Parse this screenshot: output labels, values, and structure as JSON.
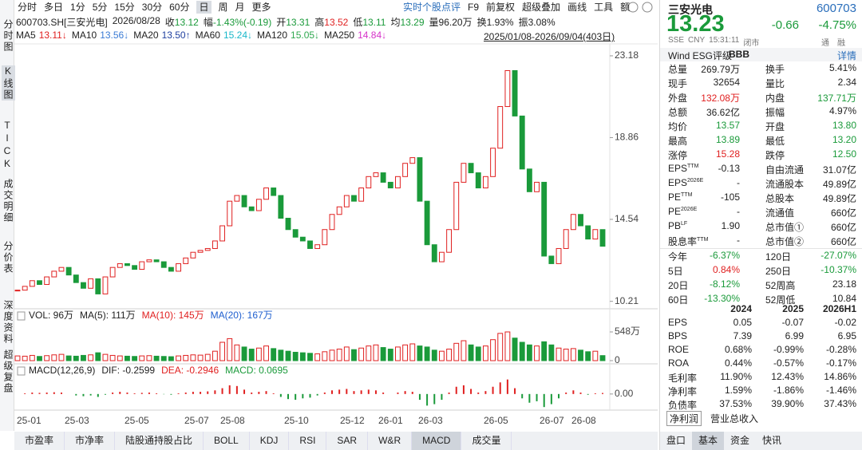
{
  "toolbar": {
    "periods": [
      "分时",
      "多日",
      "1分",
      "5分",
      "15分",
      "30分",
      "60分",
      "日",
      "周",
      "月",
      "更多"
    ],
    "tools": [
      "实时个股点评",
      "F9",
      "前复权",
      "超级叠加",
      "画线",
      "工具",
      "额"
    ]
  },
  "side_tabs": [
    "分时图",
    "K线图",
    "TICK",
    "成交明细",
    "分价表",
    "深度资料",
    "超级复盘"
  ],
  "quote_line": {
    "security": "600703.SH[三安光电]",
    "date": "2026/08/28",
    "items": [
      {
        "label": "收",
        "value": "13.12",
        "color": "#1a9a3a"
      },
      {
        "label": "幅",
        "value": "-1.43%(-0.19)",
        "color": "#1a9a3a"
      },
      {
        "label": "开",
        "value": "13.31",
        "color": "#1a9a3a"
      },
      {
        "label": "高",
        "value": "13.52",
        "color": "#e02020"
      },
      {
        "label": "低",
        "value": "13.11",
        "color": "#1a9a3a"
      },
      {
        "label": "均",
        "value": "13.29",
        "color": "#1a9a3a"
      },
      {
        "label": "量",
        "value": "96.20万",
        "color": "#222222"
      },
      {
        "label": "换",
        "value": "1.93%",
        "color": "#222222"
      },
      {
        "label": "振",
        "value": "3.08%",
        "color": "#222222"
      }
    ]
  },
  "ma_line": {
    "items": [
      {
        "label": "MA5",
        "value": "13.11↓",
        "color": "#e02020"
      },
      {
        "label": "MA10",
        "value": "13.56↓",
        "color": "#3a7bd5"
      },
      {
        "label": "MA20",
        "value": "13.50↑",
        "color": "#1f3f9f"
      },
      {
        "label": "MA60",
        "value": "15.24↓",
        "color": "#18b7c9"
      },
      {
        "label": "MA120",
        "value": "15.05↓",
        "color": "#2fa84f"
      },
      {
        "label": "MA250",
        "value": "14.84↓",
        "color": "#d633c9"
      }
    ],
    "range": "2025/01/08-2026/09/04(403日)"
  },
  "chart_data": [
    {
      "type": "candlestick",
      "up_color": "#e02020",
      "down_color": "#1a9a3a",
      "close": [
        10.8,
        11.0,
        11.3,
        11.1,
        11.5,
        11.8,
        12.0,
        11.6,
        11.2,
        10.9,
        11.4,
        10.6,
        11.5,
        12.0,
        12.2,
        12.1,
        11.9,
        12.3,
        12.4,
        12.3,
        12.0,
        11.8,
        12.2,
        12.5,
        12.8,
        12.9,
        13.0,
        13.4,
        14.2,
        15.5,
        15.8,
        15.2,
        15.0,
        15.6,
        16.2,
        15.8,
        14.6,
        14.0,
        13.6,
        13.4,
        13.0,
        13.2,
        14.0,
        14.8,
        15.2,
        15.8,
        15.5,
        16.2,
        16.8,
        17.0,
        16.5,
        16.2,
        16.8,
        17.5,
        17.8,
        15.5,
        13.2,
        12.3,
        12.8,
        14.0,
        16.5,
        17.5,
        17.0,
        16.2,
        16.8,
        18.3,
        20.5,
        22.4,
        20.0,
        17.2,
        16.0,
        16.5,
        12.6,
        12.2,
        13.0,
        14.0,
        14.8,
        14.2,
        13.5,
        14.0,
        13.12
      ],
      "ylim": [
        9.9,
        23.6
      ],
      "yticks": [
        10.21,
        14.54,
        18.86,
        23.18
      ],
      "x_labels": [
        "25-01",
        "25-03",
        "25-05",
        "25-07",
        "25-08",
        "25-10",
        "25-12",
        "26-01",
        "26-03",
        "26-05",
        "26-07",
        "26-08"
      ]
    },
    {
      "type": "bar",
      "header": [
        {
          "text": "VOL: 96万",
          "color": "#222222"
        },
        {
          "text": "MA(5): 111万",
          "color": "#222222"
        },
        {
          "text": "MA(10): 145万",
          "color": "#e02020"
        },
        {
          "text": "MA(20): 167万",
          "color": "#1f5fcf"
        }
      ],
      "values": [
        90,
        85,
        100,
        80,
        95,
        110,
        120,
        90,
        85,
        100,
        110,
        150,
        120,
        100,
        90,
        85,
        80,
        90,
        95,
        85,
        80,
        75,
        90,
        100,
        110,
        105,
        120,
        180,
        350,
        420,
        300,
        260,
        220,
        240,
        280,
        230,
        200,
        180,
        160,
        150,
        140,
        130,
        170,
        200,
        220,
        260,
        210,
        240,
        280,
        300,
        250,
        220,
        260,
        300,
        320,
        280,
        260,
        200,
        180,
        220,
        330,
        380,
        300,
        260,
        280,
        400,
        520,
        548,
        430,
        350,
        300,
        280,
        360,
        300,
        240,
        220,
        230,
        200,
        170,
        180,
        96
      ],
      "ylim": [
        0,
        548
      ],
      "yticks": [
        {
          "value": 548,
          "label": "548万"
        },
        0
      ]
    },
    {
      "type": "macd",
      "header": [
        {
          "text": "MACD(12,26,9)",
          "color": "#222222"
        },
        {
          "text": "DIF: -0.2599",
          "color": "#222222"
        },
        {
          "text": "DEA: -0.2946",
          "color": "#e02020"
        },
        {
          "text": "MACD: 0.0695",
          "color": "#1a9a3a"
        }
      ],
      "values": [
        0,
        0.05,
        0.1,
        0.08,
        0.1,
        0.12,
        0.1,
        0,
        -0.1,
        -0.15,
        -0.1,
        -0.2,
        -0.05,
        0.1,
        0.15,
        0.1,
        0.05,
        0.08,
        0.1,
        0.05,
        -0.02,
        -0.05,
        0.05,
        0.1,
        0.15,
        0.15,
        0.18,
        0.25,
        0.4,
        0.6,
        0.55,
        0.3,
        0.1,
        0.15,
        0.2,
        0.05,
        -0.2,
        -0.35,
        -0.4,
        -0.3,
        -0.25,
        -0.1,
        0.1,
        0.25,
        0.3,
        0.35,
        0.2,
        0.25,
        0.3,
        0.25,
        0.1,
        0,
        0.1,
        0.2,
        0.15,
        -0.4,
        -0.8,
        -0.7,
        -0.4,
        0.1,
        0.5,
        0.6,
        0.35,
        0.1,
        0.2,
        0.5,
        0.8,
        1.0,
        0.4,
        -0.3,
        -0.6,
        -0.5,
        -0.9,
        -0.7,
        -0.3,
        0.1,
        0.25,
        0.1,
        -0.05,
        0.05,
        0.07
      ],
      "ylim": [
        -1,
        1.2
      ],
      "yticks": [
        {
          "value": 0,
          "label": "0.00"
        }
      ]
    }
  ],
  "indicator_tabs": [
    "市盈率",
    "市净率",
    "陆股通持股占比",
    "BOLL",
    "KDJ",
    "RSI",
    "SAR",
    "W&R",
    "MACD",
    "成交量"
  ],
  "side_panel": {
    "header": {
      "name": "三安光电",
      "code": "600703",
      "price": "13.23",
      "change": "-0.66",
      "change_pct": "-4.75%",
      "meta": [
        "SSE",
        "CNY",
        "15:31:11",
        "闭市"
      ],
      "badges": [
        "通",
        "融"
      ],
      "esg_label": "Wind ESG评级",
      "esg_rating": "BBB",
      "detail": "详情"
    },
    "stats": [
      {
        "left": {
          "label": "总量",
          "value": "269.79万"
        },
        "right": {
          "label": "换手",
          "value": "5.41%"
        }
      },
      {
        "left": {
          "label": "现手",
          "value": "32654"
        },
        "right": {
          "label": "量比",
          "value": "2.34"
        }
      },
      {
        "left": {
          "label": "外盘",
          "value": "132.08万",
          "color": "#e02020"
        },
        "right": {
          "label": "内盘",
          "value": "137.71万",
          "color": "#1a9a3a"
        }
      },
      {
        "left": {
          "label": "总额",
          "value": "36.62亿"
        },
        "right": {
          "label": "振幅",
          "value": "4.97%"
        }
      },
      {
        "left": {
          "label": "均价",
          "value": "13.57",
          "color": "#1a9a3a"
        },
        "right": {
          "label": "开盘",
          "value": "13.80",
          "color": "#1a9a3a"
        }
      },
      {
        "left": {
          "label": "最高",
          "value": "13.89",
          "color": "#1a9a3a"
        },
        "right": {
          "label": "最低",
          "value": "13.20",
          "color": "#1a9a3a"
        }
      },
      {
        "left": {
          "label": "涨停",
          "value": "15.28",
          "color": "#e02020"
        },
        "right": {
          "label": "跌停",
          "value": "12.50",
          "color": "#1a9a3a"
        }
      },
      {
        "left": {
          "label": "EPS",
          "sup": "TTM",
          "value": "-0.13"
        },
        "right": {
          "label": "自由流通",
          "value": "31.07亿"
        }
      },
      {
        "left": {
          "label": "EPS",
          "sup": "2026E",
          "value": "-"
        },
        "right": {
          "label": "流通股本",
          "value": "49.89亿"
        }
      },
      {
        "left": {
          "label": "PE",
          "sup": "TTM",
          "value": "-105"
        },
        "right": {
          "label": "总股本",
          "value": "49.89亿"
        }
      },
      {
        "left": {
          "label": "PE",
          "sup": "2026E",
          "value": "-"
        },
        "right": {
          "label": "流通值",
          "value": "660亿"
        }
      },
      {
        "left": {
          "label": "PB",
          "sup": "LF",
          "value": "1.90"
        },
        "right": {
          "label": "总市值①",
          "value": "660亿"
        }
      },
      {
        "left": {
          "label": "股息率",
          "sup": "TTM",
          "value": "-"
        },
        "right": {
          "label": "总市值②",
          "value": "660亿"
        }
      }
    ],
    "returns": [
      {
        "left": {
          "label": "今年",
          "value": "-6.37%",
          "color": "#1a9a3a"
        },
        "right": {
          "label": "120日",
          "value": "-27.07%",
          "color": "#1a9a3a"
        }
      },
      {
        "left": {
          "label": "5日",
          "value": "0.84%",
          "color": "#e02020"
        },
        "right": {
          "label": "250日",
          "value": "-10.37%",
          "color": "#1a9a3a"
        }
      },
      {
        "left": {
          "label": "20日",
          "value": "-8.12%",
          "color": "#1a9a3a"
        },
        "right": {
          "label": "52周高",
          "value": "23.18"
        }
      },
      {
        "left": {
          "label": "60日",
          "value": "-13.30%",
          "color": "#1a9a3a"
        },
        "right": {
          "label": "52周低",
          "value": "10.84"
        }
      }
    ],
    "financials": {
      "columns": [
        "2024",
        "2025",
        "2026H1"
      ],
      "rows": [
        [
          "EPS",
          "0.05",
          "-0.07",
          "-0.02"
        ],
        [
          "BPS",
          "7.39",
          "6.99",
          "6.95"
        ],
        [
          "ROE",
          "0.68%",
          "-0.99%",
          "-0.28%"
        ],
        [
          "ROA",
          "0.44%",
          "-0.57%",
          "-0.17%"
        ],
        [
          "毛利率",
          "11.90%",
          "12.43%",
          "14.86%"
        ],
        [
          "净利率",
          "1.59%",
          "-1.86%",
          "-1.46%"
        ],
        [
          "负债率",
          "37.53%",
          "39.90%",
          "37.43%"
        ]
      ]
    },
    "chart_tabs": [
      "净利润",
      "营业总收入"
    ],
    "bottom_tabs": [
      "盘口",
      "基本",
      "资金",
      "快讯"
    ]
  }
}
